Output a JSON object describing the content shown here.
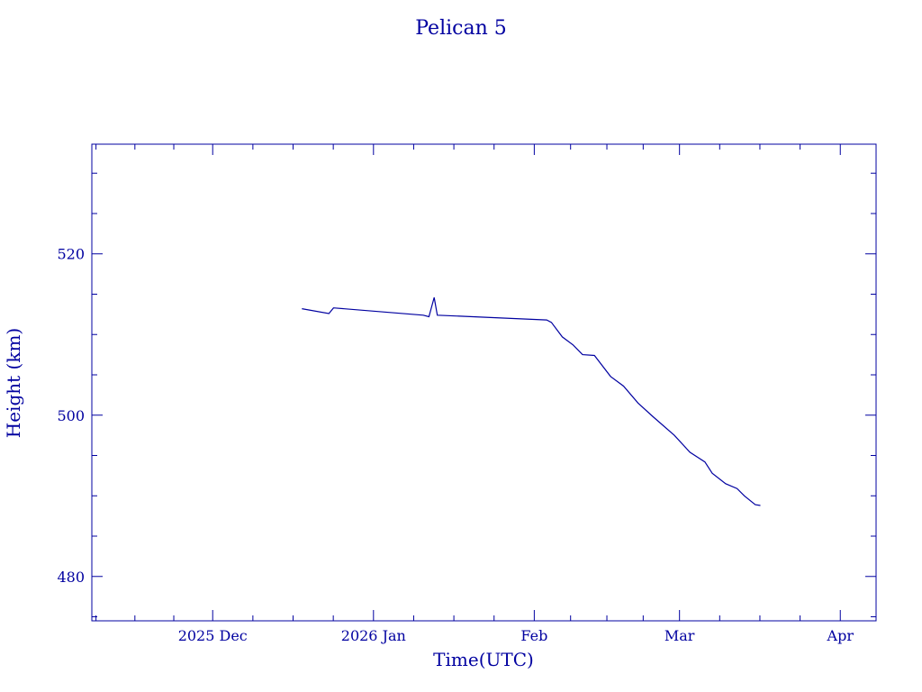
{
  "chart_data": {
    "type": "line",
    "title": "Pelican 5",
    "xlabel": "Time(UTC)",
    "ylabel": "Height (km)",
    "x_units": "days since 2025-12-01",
    "xlim": [
      -23.3,
      127.9
    ],
    "ylim": [
      474.5,
      533.6
    ],
    "x_ticks": [
      {
        "value": 0,
        "label": "2025 Dec"
      },
      {
        "value": 31,
        "label": "2026 Jan"
      },
      {
        "value": 62,
        "label": "Feb"
      },
      {
        "value": 90,
        "label": "Mar"
      },
      {
        "value": 121,
        "label": "Apr"
      }
    ],
    "y_ticks": [
      480,
      500,
      520
    ],
    "grid": false,
    "color": "#0000a0",
    "series": [
      {
        "name": "Pelican 5",
        "x": [
          17.2,
          22.4,
          23.3,
          40.6,
          41.7,
          42.7,
          43.3,
          64.4,
          65.3,
          67.4,
          69.5,
          71.3,
          73.6,
          76.7,
          79.2,
          82.0,
          84.9,
          89.0,
          92.0,
          94.9,
          96.3,
          98.9,
          101.1,
          102.5,
          104.6,
          105.6
        ],
        "y": [
          513.2,
          512.6,
          513.3,
          512.4,
          512.2,
          514.6,
          512.4,
          511.8,
          511.5,
          509.7,
          508.7,
          507.5,
          507.4,
          504.8,
          503.6,
          501.5,
          499.8,
          497.5,
          495.4,
          494.2,
          492.8,
          491.5,
          490.9,
          490.0,
          488.9,
          488.8
        ]
      }
    ]
  }
}
